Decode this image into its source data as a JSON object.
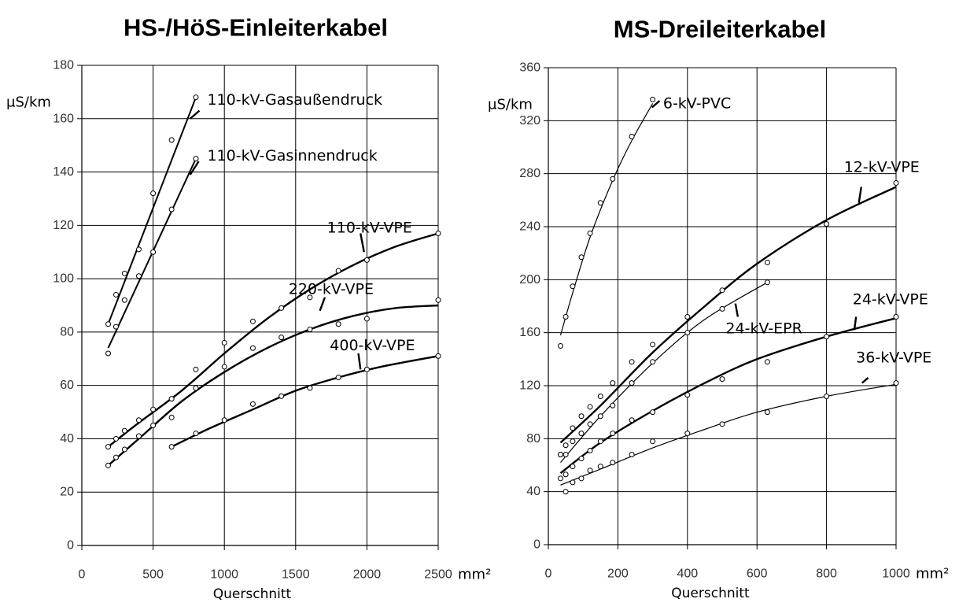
{
  "chart_data": [
    {
      "type": "line",
      "title": "HS-/HöS-Einleiterkabel",
      "ylabel": "µS/km",
      "xlabel": "Querschnitt",
      "xunit": "mm²",
      "xlim": [
        0,
        2500
      ],
      "ylim": [
        0,
        180
      ],
      "x_ticks": [
        0,
        500,
        1000,
        1500,
        2000,
        2500
      ],
      "y_ticks": [
        0,
        20,
        40,
        60,
        80,
        100,
        120,
        140,
        160,
        180
      ],
      "x_tick_labels": [
        "0",
        "500",
        "1000",
        "1500",
        "2000",
        "2500"
      ],
      "y_tick_labels": [
        "0",
        "20",
        "40",
        "60",
        "80",
        "100",
        "120",
        "140",
        "160",
        "180"
      ],
      "grid": true,
      "series": [
        {
          "name": "110-kV-Gasaußendruck",
          "points": [
            [
              185,
              83
            ],
            [
              240,
              94
            ],
            [
              300,
              102
            ],
            [
              400,
              111
            ],
            [
              500,
              132
            ],
            [
              630,
              152
            ],
            [
              800,
              168
            ]
          ],
          "curve": [
            [
              185,
              83
            ],
            [
              800,
              168
            ]
          ],
          "label_value": [
            880,
            167
          ],
          "leader_from": [
            825,
            163
          ],
          "leader_to": [
            760,
            160
          ]
        },
        {
          "name": "110-kV-Gasinnendruck",
          "points": [
            [
              185,
              72
            ],
            [
              240,
              82
            ],
            [
              300,
              92
            ],
            [
              400,
              101
            ],
            [
              500,
              110
            ],
            [
              630,
              126
            ],
            [
              800,
              145
            ]
          ],
          "curve": [
            [
              185,
              74
            ],
            [
              800,
              145
            ]
          ],
          "label_value": [
            880,
            146
          ],
          "leader_from": [
            820,
            144
          ],
          "leader_to": [
            760,
            139
          ]
        },
        {
          "name": "110-kV-VPE",
          "points": [
            [
              185,
              37
            ],
            [
              240,
              40
            ],
            [
              300,
              43
            ],
            [
              400,
              47
            ],
            [
              500,
              51
            ],
            [
              630,
              55
            ],
            [
              800,
              66
            ],
            [
              1000,
              76
            ],
            [
              1200,
              84
            ],
            [
              1400,
              89
            ],
            [
              1600,
              93
            ],
            [
              1800,
              103
            ],
            [
              2000,
              107
            ],
            [
              2500,
              117
            ]
          ],
          "curve": [
            [
              185,
              37
            ],
            [
              400,
              46
            ],
            [
              700,
              58
            ],
            [
              1000,
              72
            ],
            [
              1300,
              85
            ],
            [
              1600,
              96
            ],
            [
              1900,
              105
            ],
            [
              2200,
              112
            ],
            [
              2500,
              117
            ]
          ],
          "label_value": [
            1720,
            119
          ],
          "leader_from": [
            1955,
            117
          ],
          "leader_to": [
            1980,
            110
          ]
        },
        {
          "name": "220-kV-VPE",
          "points": [
            [
              185,
              30
            ],
            [
              240,
              33
            ],
            [
              300,
              36
            ],
            [
              400,
              41
            ],
            [
              500,
              45
            ],
            [
              630,
              48
            ],
            [
              800,
              59
            ],
            [
              1000,
              67
            ],
            [
              1200,
              74
            ],
            [
              1400,
              78
            ],
            [
              1600,
              81
            ],
            [
              1800,
              83
            ],
            [
              2000,
              85
            ],
            [
              2500,
              92
            ]
          ],
          "curve": [
            [
              185,
              30
            ],
            [
              400,
              40
            ],
            [
              700,
              54
            ],
            [
              1000,
              65
            ],
            [
              1300,
              74
            ],
            [
              1600,
              81
            ],
            [
              1900,
              86
            ],
            [
              2200,
              89
            ],
            [
              2500,
              90
            ]
          ],
          "label_value": [
            1450,
            96
          ],
          "leader_from": [
            1705,
            93
          ],
          "leader_to": [
            1670,
            88
          ]
        },
        {
          "name": "400-kV-VPE",
          "points": [
            [
              630,
              37
            ],
            [
              800,
              42
            ],
            [
              1000,
              47
            ],
            [
              1200,
              53
            ],
            [
              1400,
              56
            ],
            [
              1600,
              59
            ],
            [
              1800,
              63
            ],
            [
              2000,
              66
            ],
            [
              2500,
              71
            ]
          ],
          "curve": [
            [
              630,
              37
            ],
            [
              900,
              44
            ],
            [
              1200,
              51
            ],
            [
              1500,
              58
            ],
            [
              1800,
              63
            ],
            [
              2100,
              67
            ],
            [
              2500,
              71
            ]
          ],
          "label_value": [
            1740,
            75
          ],
          "leader_from": [
            1940,
            72
          ],
          "leader_to": [
            1955,
            66
          ]
        }
      ]
    },
    {
      "type": "line",
      "title": "MS-Dreileiterkabel",
      "ylabel": "µS/km",
      "xlabel": "Querschnitt",
      "xunit": "mm²",
      "xlim": [
        0,
        1000
      ],
      "ylim": [
        0,
        360
      ],
      "x_ticks": [
        0,
        200,
        400,
        600,
        800,
        1000
      ],
      "y_ticks": [
        0,
        40,
        80,
        120,
        160,
        200,
        240,
        280,
        320,
        360
      ],
      "x_tick_labels": [
        "0",
        "200",
        "400",
        "600",
        "800",
        "1000"
      ],
      "y_tick_labels": [
        "0",
        "40",
        "80",
        "120",
        "160",
        "200",
        "240",
        "280",
        "320",
        "360"
      ],
      "grid": true,
      "series": [
        {
          "name": "6-kV-PVC",
          "points": [
            [
              35,
              150
            ],
            [
              50,
              172
            ],
            [
              70,
              195
            ],
            [
              95,
              217
            ],
            [
              120,
              235
            ],
            [
              150,
              258
            ],
            [
              185,
              276
            ],
            [
              240,
              308
            ],
            [
              300,
              336
            ]
          ],
          "curve": [
            [
              35,
              158
            ],
            [
              70,
              190
            ],
            [
              120,
              232
            ],
            [
              185,
              275
            ],
            [
              240,
              305
            ],
            [
              300,
              333
            ]
          ],
          "label_value": [
            330,
            333
          ],
          "leader_from": [
            320,
            335
          ],
          "leader_to": [
            298,
            330
          ]
        },
        {
          "name": "12-kV-VPE",
          "points": [
            [
              35,
              68
            ],
            [
              50,
              75
            ],
            [
              70,
              88
            ],
            [
              95,
              97
            ],
            [
              120,
              104
            ],
            [
              150,
              112
            ],
            [
              185,
              122
            ],
            [
              240,
              138
            ],
            [
              300,
              151
            ],
            [
              400,
              172
            ],
            [
              500,
              192
            ],
            [
              630,
              213
            ],
            [
              800,
              242
            ],
            [
              1000,
              273
            ]
          ],
          "curve": [
            [
              35,
              77
            ],
            [
              150,
              105
            ],
            [
              300,
              145
            ],
            [
              450,
              180
            ],
            [
              600,
              212
            ],
            [
              800,
              245
            ],
            [
              1000,
              270
            ]
          ],
          "label_value": [
            850,
            285
          ],
          "leader_from": [
            900,
            270
          ],
          "leader_to": [
            893,
            258
          ]
        },
        {
          "name": "24-kV-EPR",
          "points": [
            [
              35,
              68
            ],
            [
              50,
              68
            ],
            [
              70,
              78
            ],
            [
              95,
              84
            ],
            [
              120,
              91
            ],
            [
              150,
              97
            ],
            [
              185,
              105
            ],
            [
              240,
              122
            ],
            [
              300,
              138
            ],
            [
              400,
              160
            ],
            [
              500,
              178
            ],
            [
              630,
              198
            ]
          ],
          "curve": [
            [
              35,
              62
            ],
            [
              150,
              97
            ],
            [
              300,
              137
            ],
            [
              450,
              170
            ],
            [
              630,
              198
            ]
          ],
          "label_value": [
            510,
            163
          ],
          "leader_from": [
            545,
            172
          ],
          "leader_to": [
            538,
            182
          ]
        },
        {
          "name": "24-kV-VPE",
          "points": [
            [
              35,
              50
            ],
            [
              50,
              53
            ],
            [
              70,
              59
            ],
            [
              95,
              65
            ],
            [
              120,
              71
            ],
            [
              150,
              78
            ],
            [
              185,
              84
            ],
            [
              240,
              94
            ],
            [
              300,
              100
            ],
            [
              400,
              113
            ],
            [
              500,
              125
            ],
            [
              630,
              138
            ],
            [
              800,
              157
            ],
            [
              1000,
              172
            ]
          ],
          "curve": [
            [
              35,
              54
            ],
            [
              150,
              77
            ],
            [
              300,
              101
            ],
            [
              450,
              122
            ],
            [
              600,
              140
            ],
            [
              800,
              157
            ],
            [
              1000,
              171
            ]
          ],
          "label_value": [
            875,
            185
          ],
          "leader_from": [
            885,
            172
          ],
          "leader_to": [
            880,
            162
          ]
        },
        {
          "name": "36-kV-VPE",
          "points": [
            [
              50,
              40
            ],
            [
              70,
              47
            ],
            [
              95,
              50
            ],
            [
              120,
              56
            ],
            [
              150,
              59
            ],
            [
              185,
              62
            ],
            [
              240,
              68
            ],
            [
              300,
              78
            ],
            [
              400,
              84
            ],
            [
              500,
              91
            ],
            [
              630,
              100
            ],
            [
              800,
              112
            ],
            [
              1000,
              122
            ]
          ],
          "curve": [
            [
              35,
              45
            ],
            [
              150,
              57
            ],
            [
              300,
              73
            ],
            [
              450,
              87
            ],
            [
              600,
              100
            ],
            [
              800,
              112
            ],
            [
              1000,
              121
            ]
          ],
          "label_value": [
            885,
            141
          ],
          "leader_from": [
            920,
            126
          ],
          "leader_to": [
            902,
            122
          ]
        }
      ]
    }
  ]
}
